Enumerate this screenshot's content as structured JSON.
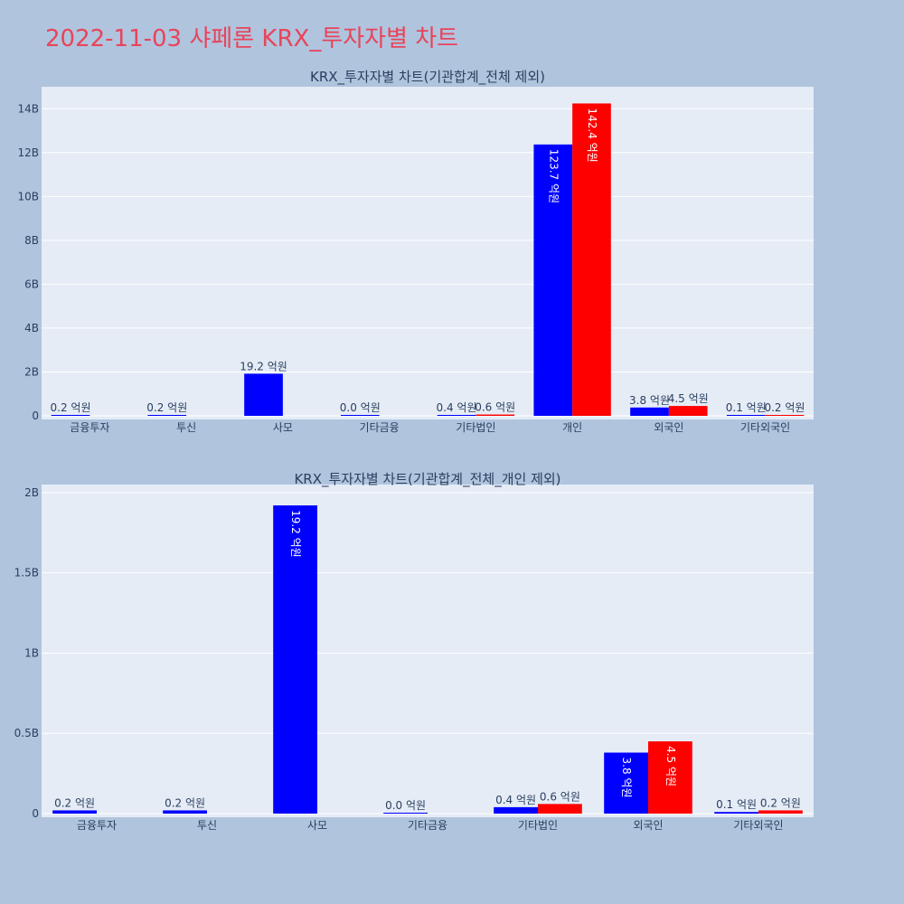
{
  "page_title": "2022-11-03 샤페론 KRX_투자자별 차트",
  "colors": {
    "series_a": "#0000ff",
    "series_b": "#ff0000",
    "plot_bg": "#e5ecf6",
    "page_bg": "#b0c4de",
    "title": "#e8445a"
  },
  "chart_data": [
    {
      "type": "bar",
      "title": "KRX_투자자별 차트(기관합계_전체 제외)",
      "categories": [
        "금융투자",
        "투신",
        "사모",
        "기타금융",
        "기타법인",
        "개인",
        "외국인",
        "기타외국인"
      ],
      "series": [
        {
          "color": "#0000ff",
          "values": [
            20000000,
            20000000,
            1920000000,
            0,
            40000000,
            12370000000,
            380000000,
            10000000
          ],
          "labels": [
            "0.2 억원",
            "0.2 억원",
            "19.2 억원",
            "0.0 억원",
            "0.4 억원",
            "123.7 억원",
            "3.8 억원",
            "0.1 억원"
          ]
        },
        {
          "color": "#ff0000",
          "values": [
            null,
            null,
            null,
            null,
            60000000,
            14240000000,
            450000000,
            20000000
          ],
          "labels": [
            null,
            null,
            null,
            null,
            "0.6 억원",
            "142.4 억원",
            "4.5 억원",
            "0.2 억원"
          ]
        }
      ],
      "ylim": [
        0,
        15000000000
      ],
      "yticks": [
        0,
        2000000000,
        4000000000,
        6000000000,
        8000000000,
        10000000000,
        12000000000,
        14000000000
      ],
      "ytick_labels": [
        "0",
        "2B",
        "4B",
        "6B",
        "8B",
        "10B",
        "12B",
        "14B"
      ],
      "grid": true
    },
    {
      "type": "bar",
      "title": "KRX_투자자별 차트(기관합계_전체_개인 제외)",
      "categories": [
        "금융투자",
        "투신",
        "사모",
        "기타금융",
        "기타법인",
        "외국인",
        "기타외국인"
      ],
      "series": [
        {
          "color": "#0000ff",
          "values": [
            20000000,
            20000000,
            1920000000,
            0,
            40000000,
            380000000,
            10000000
          ],
          "labels": [
            "0.2 억원",
            "0.2 억원",
            "19.2 억원",
            "0.0 억원",
            "0.4 억원",
            "3.8 억원",
            "0.1 억원"
          ]
        },
        {
          "color": "#ff0000",
          "values": [
            null,
            null,
            null,
            null,
            60000000,
            450000000,
            20000000
          ],
          "labels": [
            null,
            null,
            null,
            null,
            "0.6 억원",
            "4.5 억원",
            "0.2 억원"
          ]
        }
      ],
      "ylim": [
        0,
        2050000000
      ],
      "yticks": [
        0,
        500000000,
        1000000000,
        1500000000,
        2000000000
      ],
      "ytick_labels": [
        "0",
        "0.5B",
        "1B",
        "1.5B",
        "2B"
      ],
      "grid": true
    }
  ]
}
